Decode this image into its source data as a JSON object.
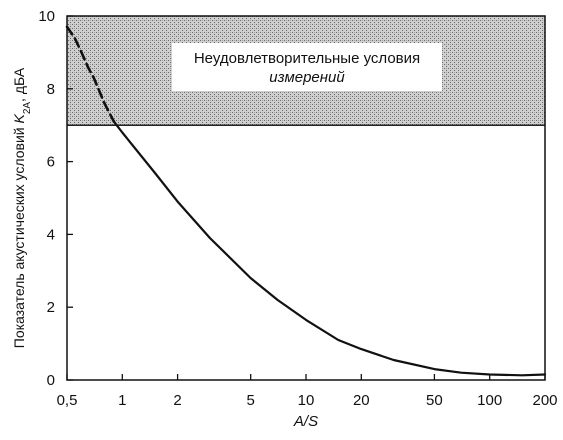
{
  "chart_data": {
    "type": "line",
    "x_scale": "log",
    "xlim": [
      0.5,
      200
    ],
    "ylim": [
      0,
      10
    ],
    "xticks": [
      {
        "value": 0.5,
        "label": "0,5"
      },
      {
        "value": 1,
        "label": "1"
      },
      {
        "value": 2,
        "label": "2"
      },
      {
        "value": 5,
        "label": "5"
      },
      {
        "value": 10,
        "label": "10"
      },
      {
        "value": 20,
        "label": "20"
      },
      {
        "value": 50,
        "label": "50"
      },
      {
        "value": 100,
        "label": "100"
      },
      {
        "value": 200,
        "label": "200"
      }
    ],
    "yticks": [
      {
        "value": 0,
        "label": "0"
      },
      {
        "value": 2,
        "label": "2"
      },
      {
        "value": 4,
        "label": "4"
      },
      {
        "value": 6,
        "label": "6"
      },
      {
        "value": 8,
        "label": "8"
      },
      {
        "value": 10,
        "label": "10"
      }
    ],
    "xlabel": "A/S",
    "ylabel": {
      "prefix": "Показатель акустических условий ",
      "symbol": "K",
      "subscript": "2A",
      "suffix": ", дБА"
    },
    "grid": false,
    "shaded_region": {
      "y_from": 7,
      "y_to": 10,
      "label_line1": "Неудовлетворительные условия",
      "label_line2": "измерений"
    },
    "series": [
      {
        "style": "dashed",
        "x": [
          0.5,
          0.55,
          0.6,
          0.65,
          0.7,
          0.8,
          0.9
        ],
        "y": [
          9.7,
          9.4,
          9.0,
          8.6,
          8.3,
          7.6,
          7.1
        ]
      },
      {
        "style": "solid",
        "x": [
          0.9,
          1,
          1.5,
          2,
          3,
          5,
          7,
          10,
          15,
          20,
          30,
          50,
          70,
          100,
          150,
          200
        ],
        "y": [
          7.1,
          6.8,
          5.7,
          4.9,
          3.9,
          2.8,
          2.2,
          1.65,
          1.1,
          0.85,
          0.55,
          0.3,
          0.2,
          0.15,
          0.13,
          0.15
        ]
      }
    ]
  }
}
